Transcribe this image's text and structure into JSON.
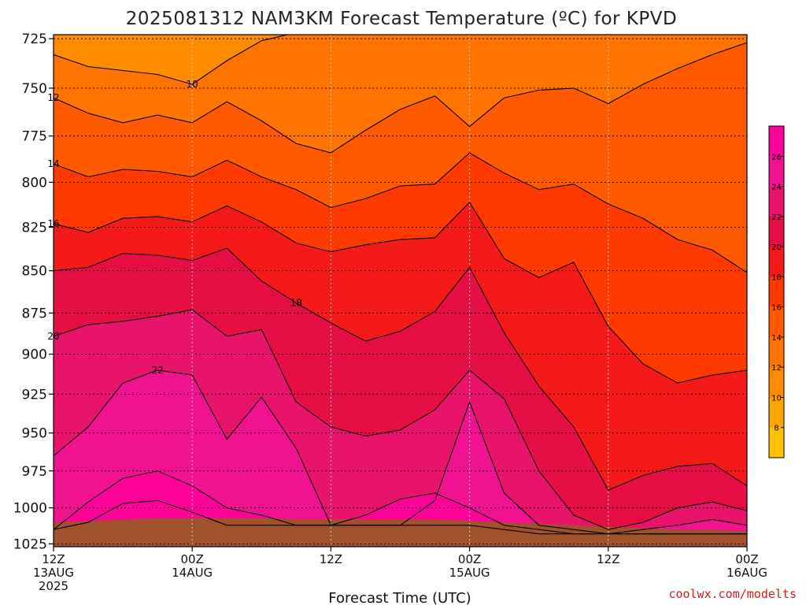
{
  "chart_data": {
    "type": "contour",
    "title": "2025081312 NAM3KM Forecast Temperature (ºC) for KPVD",
    "xlabel": "Forecast Time (UTC)",
    "ylabel": "",
    "y_scale": "log",
    "y_inverted": true,
    "y_range_hpa": [
      723,
      1027
    ],
    "x_range_hours": [
      0,
      60
    ],
    "y_ticks": [
      "725",
      "750",
      "775",
      "800",
      "825",
      "850",
      "875",
      "900",
      "925",
      "950",
      "975",
      "1000",
      "1025"
    ],
    "y_tick_values": [
      725,
      750,
      775,
      800,
      825,
      850,
      875,
      900,
      925,
      950,
      975,
      1000,
      1025
    ],
    "x_ticks": [
      {
        "hour": 0,
        "line1": "12Z",
        "line2": "13AUG",
        "line3": "2025"
      },
      {
        "hour": 12,
        "line1": "00Z",
        "line2": "14AUG",
        "line3": ""
      },
      {
        "hour": 24,
        "line1": "12Z",
        "line2": "",
        "line3": ""
      },
      {
        "hour": 36,
        "line1": "00Z",
        "line2": "15AUG",
        "line3": ""
      },
      {
        "hour": 48,
        "line1": "12Z",
        "line2": "",
        "line3": ""
      },
      {
        "hour": 60,
        "line1": "00Z",
        "line2": "16AUG",
        "line3": ""
      }
    ],
    "grid": true,
    "levels": [
      6,
      8,
      10,
      12,
      14,
      16,
      18,
      20,
      22,
      24,
      26,
      28
    ],
    "fill_colors": [
      "#FFC000",
      "#FFA500",
      "#FF8C00",
      "#FF7300",
      "#FF5A00",
      "#FF3A00",
      "#F51A1A",
      "#E50E45",
      "#E8136B",
      "#F01290",
      "#FF0099"
    ],
    "colorbar_ticks": [
      "8",
      "10",
      "12",
      "14",
      "16",
      "18",
      "20",
      "22",
      "24",
      "26"
    ],
    "x_hours": [
      0,
      3,
      6,
      9,
      12,
      15,
      18,
      21,
      24,
      27,
      30,
      33,
      36,
      39,
      42,
      45,
      48,
      51,
      54,
      57,
      60
    ],
    "isotherms": [
      {
        "value": 10,
        "label": "10",
        "label_hour": 12,
        "p": [
          733,
          739,
          741,
          743,
          748,
          736,
          726,
          722,
          722,
          722,
          722,
          722,
          722,
          722,
          722,
          722,
          722,
          722,
          722,
          722,
          722
        ]
      },
      {
        "value": 12,
        "label": "12",
        "label_hour": 7,
        "p": [
          755,
          763,
          768,
          764,
          768,
          757,
          767,
          779,
          784,
          772,
          761,
          754,
          770,
          755,
          751,
          750,
          758,
          748,
          740,
          733,
          727
        ]
      },
      {
        "value": 14,
        "label": "14",
        "label_hour": 10,
        "p": [
          790,
          797,
          793,
          794,
          797,
          788,
          797,
          804,
          814,
          809,
          802,
          801,
          784,
          795,
          804,
          801,
          812,
          820,
          832,
          838,
          851
        ]
      },
      {
        "value": 16,
        "label": "16",
        "label_hour": 13,
        "p": [
          823,
          828,
          820,
          819,
          822,
          813,
          822,
          834,
          839,
          835,
          832,
          831,
          811,
          843,
          854,
          845,
          883,
          906,
          918,
          913,
          910
        ]
      },
      {
        "value": 18,
        "label": "18",
        "label_hour": 21,
        "p": [
          850,
          848,
          840,
          841,
          844,
          837,
          856,
          869,
          881,
          892,
          886,
          874,
          848,
          887,
          920,
          946,
          988,
          978,
          972,
          970,
          985
        ]
      },
      {
        "value": 20,
        "label": "20",
        "label_hour": 10,
        "p": [
          889,
          882,
          880,
          877,
          873,
          889,
          885,
          930,
          946,
          952,
          948,
          935,
          910,
          928,
          975,
          1005,
          1015,
          1010,
          1000,
          996,
          1002
        ]
      },
      {
        "value": 22,
        "label": "22",
        "label_hour": 9,
        "p": [
          965,
          946,
          918,
          910,
          913,
          954,
          927,
          960,
          1012,
          1012,
          1012,
          995,
          930,
          990,
          1012,
          1015,
          1018,
          1015,
          1012,
          1008,
          1012
        ]
      },
      {
        "value": 24,
        "label": "",
        "label_hour": 8,
        "p": [
          1015,
          996,
          980,
          975,
          985,
          1000,
          1005,
          1012,
          1012,
          1005,
          994,
          990,
          1000,
          1012,
          1015,
          1018,
          1018,
          1018,
          1018,
          1018,
          1018
        ]
      },
      {
        "value": 26,
        "label": "",
        "label_hour": 10,
        "p": [
          1015,
          1010,
          997,
          995,
          1003,
          1012,
          1012,
          1012,
          1012,
          1012,
          1012,
          1012,
          1012,
          1015,
          1018,
          1018,
          1018,
          1018,
          1018,
          1018,
          1018
        ]
      }
    ],
    "ground_surface_hpa": [
      1010,
      1009,
      1008,
      1007,
      1007,
      1007,
      1007,
      1008,
      1008,
      1008,
      1008,
      1008,
      1009,
      1010,
      1011,
      1012,
      1013,
      1014,
      1015,
      1015,
      1016
    ],
    "ground_color": "#A0522D",
    "credit": "coolwx.com/modelts"
  }
}
